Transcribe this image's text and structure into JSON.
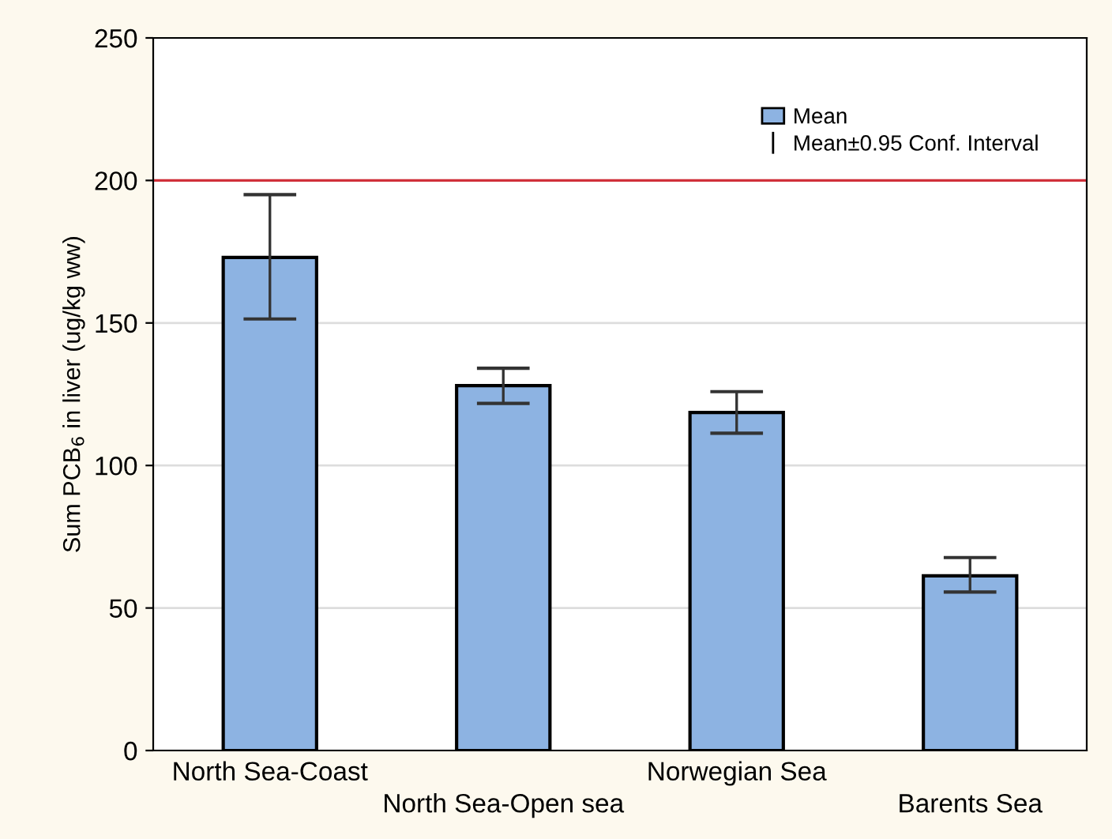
{
  "chart_data": {
    "type": "bar",
    "ylabel": "Sum PCB$_{6}$ in liver (ug/kg ww)",
    "categories": [
      "North Sea-Coast",
      "North Sea-Open sea",
      "Norwegian Sea",
      "Barents Sea"
    ],
    "series": [
      {
        "name": "Mean",
        "color": "#8db3e2",
        "values": [
          173,
          128,
          118.6,
          61.3
        ],
        "errors": [
          [
            151.4,
            195
          ],
          [
            121.8,
            134.1
          ],
          [
            111.3,
            125.9
          ],
          [
            55.6,
            67.7
          ]
        ]
      }
    ],
    "annotations": [
      "Mean±0.95 Conf. Interval"
    ],
    "ylim": [
      0,
      250
    ],
    "yticks": [
      0,
      50,
      100,
      150,
      200,
      250
    ],
    "grid": "y",
    "legend": "top right",
    "ref_lines": [
      {
        "axis": "y",
        "value": 200,
        "color": "#d0303a"
      }
    ]
  }
}
